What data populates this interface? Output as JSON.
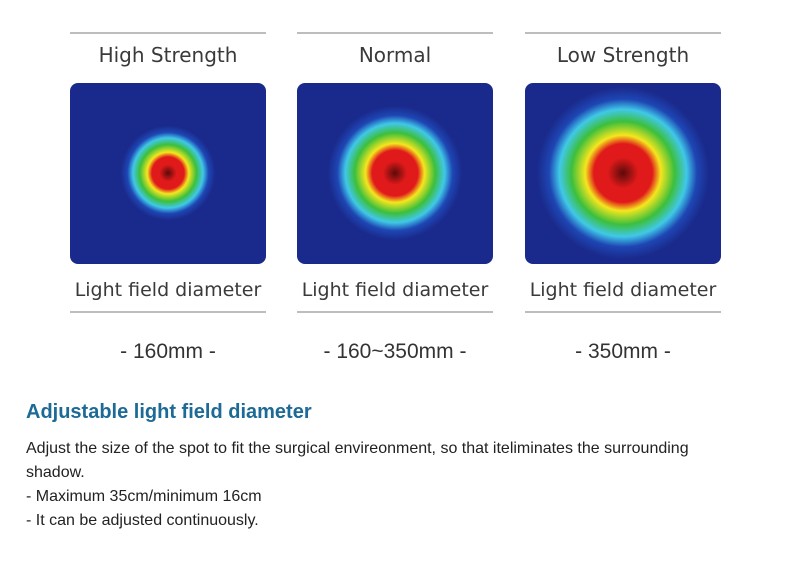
{
  "panels": [
    {
      "mode_label": "High Strength",
      "field_label": "Light field diameter",
      "diameter": "- 160mm -",
      "spot_relative_size": 0.55
    },
    {
      "mode_label": "Normal",
      "field_label": "Light field diameter",
      "diameter": "- 160~350mm -",
      "spot_relative_size": 0.78
    },
    {
      "mode_label": "Low Strength",
      "field_label": "Light field diameter",
      "diameter": "- 350mm -",
      "spot_relative_size": 1.0
    }
  ],
  "heatmap_colors": {
    "background": "#1a2a8c",
    "core": "#5c0a0a",
    "red": "#e01a1a",
    "yellow": "#f5e61e",
    "green": "#3cbf3c",
    "cyan": "#40c8e8",
    "blue": "#1e46b4"
  },
  "section": {
    "title": "Adjustable light field diameter",
    "paragraph": "Adjust the size of the spot to fit the surgical envireonment, so that iteliminates the surrounding shadow.",
    "bullet_1": "- Maximum 35cm/minimum 16cm",
    "bullet_2": "- It can be adjusted continuously."
  }
}
